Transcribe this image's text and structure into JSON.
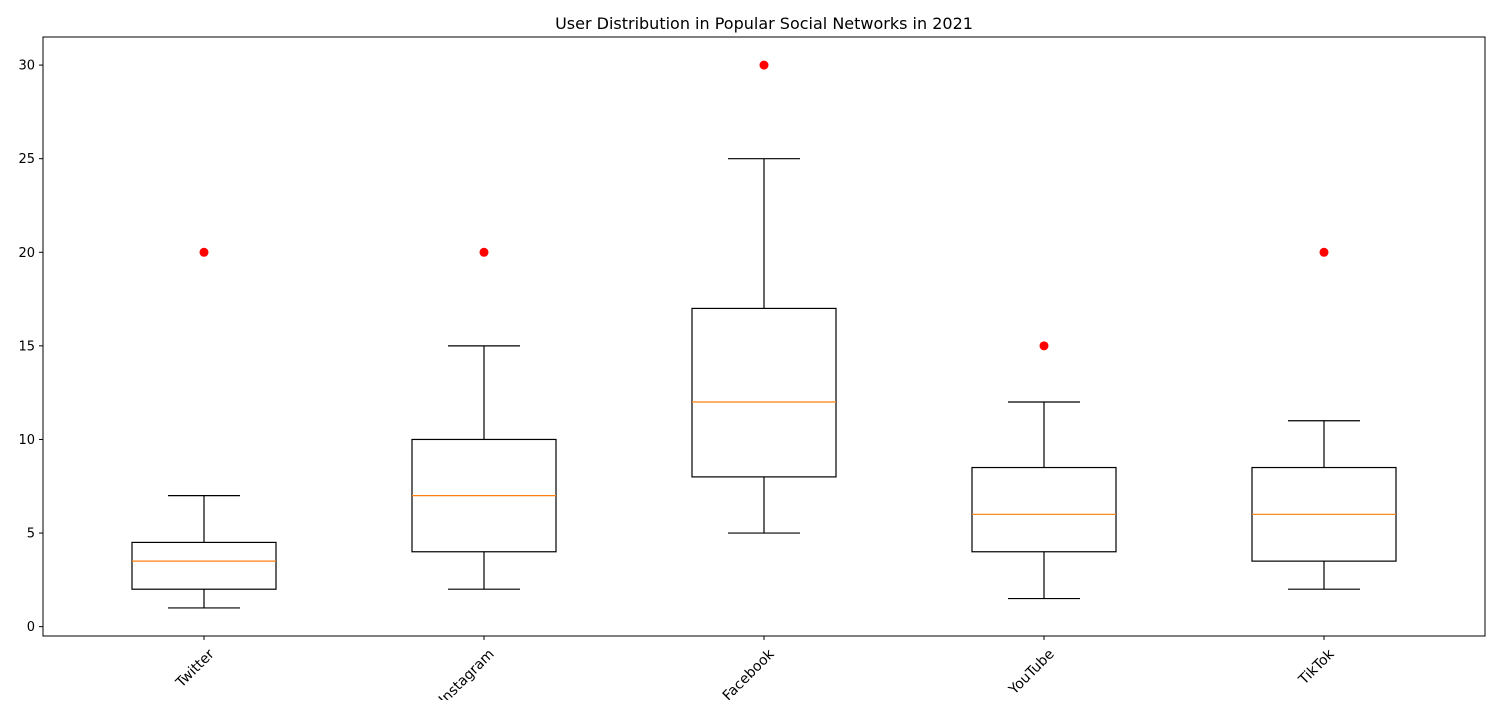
{
  "chart_data": {
    "type": "box",
    "title": "User Distribution in Popular Social Networks in 2021",
    "xlabel": "",
    "ylabel": "",
    "ylim": [
      -0.5,
      31.5
    ],
    "yticks": [
      0,
      5,
      10,
      15,
      20,
      25,
      30
    ],
    "categories": [
      "Twitter",
      "Instagram",
      "Facebook",
      "YouTube",
      "TikTok"
    ],
    "boxes": [
      {
        "name": "Twitter",
        "whisker_low": 1,
        "q1": 2,
        "median": 3.5,
        "q3": 4.5,
        "whisker_high": 7,
        "outliers": [
          20
        ]
      },
      {
        "name": "Instagram",
        "whisker_low": 2,
        "q1": 4,
        "median": 7,
        "q3": 10,
        "whisker_high": 15,
        "outliers": [
          20
        ]
      },
      {
        "name": "Facebook",
        "whisker_low": 5,
        "q1": 8,
        "median": 12,
        "q3": 17,
        "whisker_high": 25,
        "outliers": [
          30
        ]
      },
      {
        "name": "YouTube",
        "whisker_low": 1.5,
        "q1": 4,
        "median": 6,
        "q3": 8.5,
        "whisker_high": 12,
        "outliers": [
          15
        ]
      },
      {
        "name": "TikTok",
        "whisker_low": 2,
        "q1": 3.5,
        "median": 6,
        "q3": 8.5,
        "whisker_high": 11,
        "outliers": [
          20
        ]
      }
    ],
    "colors": {
      "box": "#000000",
      "median": "#ff7f0e",
      "outlier": "#ff0000",
      "axis": "#000000",
      "background": "#ffffff"
    },
    "grid": false,
    "xtick_rotation": 45
  }
}
